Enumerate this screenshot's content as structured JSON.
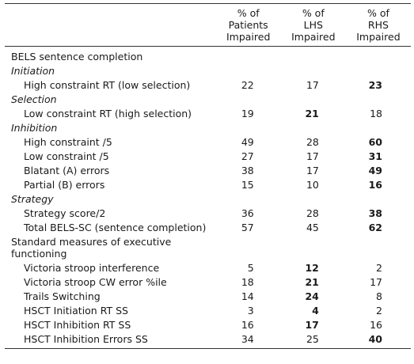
{
  "header": {
    "patients": [
      "% of",
      "Patients",
      "Impaired"
    ],
    "lhs": [
      "% of",
      "LHS",
      "Impaired"
    ],
    "rhs": [
      "% of",
      "RHS",
      "Impaired"
    ]
  },
  "rows": [
    {
      "kind": "section",
      "label": "BELS sentence completion"
    },
    {
      "kind": "group",
      "label": "Initiation"
    },
    {
      "kind": "item",
      "label": "High constraint RT (low selection)",
      "patients": "22",
      "lhs": "17",
      "rhs": "23",
      "bold": "rhs"
    },
    {
      "kind": "group",
      "label": "Selection"
    },
    {
      "kind": "item",
      "label": "Low constraint RT (high selection)",
      "patients": "19",
      "lhs": "21",
      "rhs": "18",
      "bold": "lhs"
    },
    {
      "kind": "group",
      "label": "Inhibition"
    },
    {
      "kind": "item",
      "label": "High constraint /5",
      "patients": "49",
      "lhs": "28",
      "rhs": "60",
      "bold": "rhs"
    },
    {
      "kind": "item",
      "label": "Low constraint /5",
      "patients": "27",
      "lhs": "17",
      "rhs": "31",
      "bold": "rhs"
    },
    {
      "kind": "item",
      "label": "Blatant (A) errors",
      "patients": "38",
      "lhs": "17",
      "rhs": "49",
      "bold": "rhs"
    },
    {
      "kind": "item",
      "label": "Partial (B) errors",
      "patients": "15",
      "lhs": "10",
      "rhs": "16",
      "bold": "rhs"
    },
    {
      "kind": "group",
      "label": "Strategy"
    },
    {
      "kind": "item",
      "label": "Strategy score/2",
      "patients": "36",
      "lhs": "28",
      "rhs": "38",
      "bold": "rhs"
    },
    {
      "kind": "item",
      "label": "Total BELS-SC (sentence completion)",
      "patients": "57",
      "lhs": "45",
      "rhs": "62",
      "bold": "rhs"
    },
    {
      "kind": "section",
      "label": "Standard measures of executive functioning"
    },
    {
      "kind": "item",
      "label": "Victoria stroop interference",
      "patients": "5",
      "lhs": "12",
      "rhs": "2",
      "bold": "lhs"
    },
    {
      "kind": "item",
      "label": "Victoria stroop CW error %ile",
      "patients": "18",
      "lhs": "21",
      "rhs": "17",
      "bold": "lhs"
    },
    {
      "kind": "item",
      "label": "Trails Switching",
      "patients": "14",
      "lhs": "24",
      "rhs": "8",
      "bold": "lhs"
    },
    {
      "kind": "item",
      "label": "HSCT Initiation RT SS",
      "patients": "3",
      "lhs": "4",
      "rhs": "2",
      "bold": "lhs"
    },
    {
      "kind": "item",
      "label": "HSCT Inhibition RT SS",
      "patients": "16",
      "lhs": "17",
      "rhs": "16",
      "bold": "lhs"
    },
    {
      "kind": "item",
      "label": "HSCT Inhibition Errors SS",
      "patients": "34",
      "lhs": "25",
      "rhs": "40",
      "bold": "rhs"
    }
  ]
}
